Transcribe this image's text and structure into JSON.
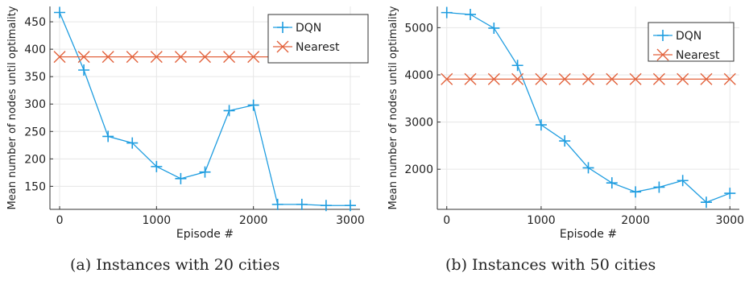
{
  "captions": [
    "(a) Instances with 20 cities",
    "(b) Instances with 50 cities"
  ],
  "chart_data": [
    {
      "type": "line",
      "xlabel": "Episode #",
      "ylabel": "Mean number of nodes until optimality",
      "xlim": [
        -100,
        3100
      ],
      "ylim": [
        108,
        478
      ],
      "xticks": [
        0,
        1000,
        2000,
        3000
      ],
      "yticks": [
        150,
        200,
        250,
        300,
        350,
        400,
        450
      ],
      "grid": true,
      "legend_position": "top-right",
      "series": [
        {
          "name": "DQN",
          "color": "#1f9de0",
          "marker": "plus",
          "x": [
            0,
            250,
            500,
            750,
            1000,
            1250,
            1500,
            1750,
            2000,
            2250,
            2500,
            2750,
            3000
          ],
          "y": [
            467,
            362,
            241,
            229,
            186,
            164,
            176,
            288,
            298,
            117,
            117,
            115,
            115
          ]
        },
        {
          "name": "Nearest",
          "color": "#e2623c",
          "marker": "x",
          "x": [
            0,
            250,
            500,
            750,
            1000,
            1250,
            1500,
            1750,
            2000,
            2250,
            2500,
            2750,
            3000
          ],
          "y": [
            386,
            386,
            386,
            386,
            386,
            386,
            386,
            386,
            386,
            386,
            386,
            386,
            386
          ]
        }
      ]
    },
    {
      "type": "line",
      "xlabel": "Episode #",
      "ylabel": "Mean number of nodes until optimality",
      "xlim": [
        -100,
        3100
      ],
      "ylim": [
        1150,
        5450
      ],
      "xticks": [
        0,
        1000,
        2000,
        3000
      ],
      "yticks": [
        2000,
        3000,
        4000,
        5000
      ],
      "grid": true,
      "legend_position": "top-right",
      "series": [
        {
          "name": "DQN",
          "color": "#1f9de0",
          "marker": "plus",
          "x": [
            0,
            250,
            500,
            750,
            1000,
            1250,
            1500,
            1750,
            2000,
            2250,
            2500,
            2750,
            3000
          ],
          "y": [
            5320,
            5280,
            4990,
            4200,
            2940,
            2600,
            2030,
            1710,
            1520,
            1620,
            1760,
            1300,
            1490
          ]
        },
        {
          "name": "Nearest",
          "color": "#e2623c",
          "marker": "x",
          "x": [
            0,
            250,
            500,
            750,
            1000,
            1250,
            1500,
            1750,
            2000,
            2250,
            2500,
            2750,
            3000
          ],
          "y": [
            3910,
            3910,
            3910,
            3910,
            3910,
            3910,
            3910,
            3910,
            3910,
            3910,
            3910,
            3910,
            3910
          ]
        }
      ]
    }
  ]
}
